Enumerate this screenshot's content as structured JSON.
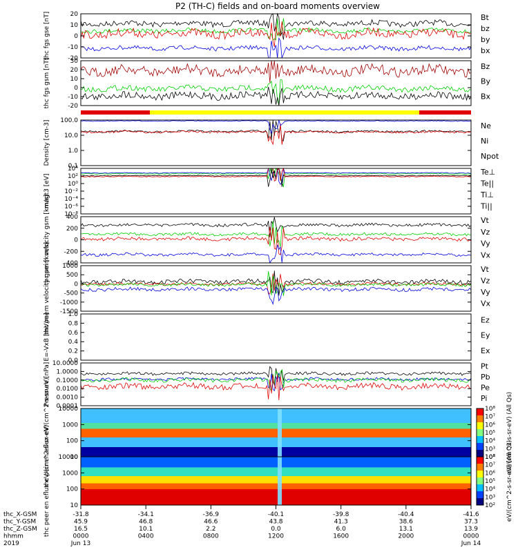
{
  "title": "P2 (TH-C) fields and on-board moments overview",
  "colors": {
    "black": "#000000",
    "red": "#e00000",
    "green": "#00d000",
    "blue": "#0000e0",
    "darkred": "#a00000",
    "yellow": "#ffff00"
  },
  "chart_data": [
    {
      "type": "line",
      "ylabel": "thc fgs gse [nT]",
      "ylim": [
        -20,
        20
      ],
      "yticks": [
        "20",
        "10",
        "0",
        "-10",
        "-20"
      ],
      "legend": [
        {
          "name": "Bt",
          "color": "black"
        },
        {
          "name": "bz",
          "color": "red"
        },
        {
          "name": "by",
          "color": "green"
        },
        {
          "name": "bx",
          "color": "blue"
        }
      ]
    },
    {
      "type": "line",
      "ylabel": "thc fgs gsm [nT]",
      "ylim": [
        -25,
        30
      ],
      "yticks": [
        "30",
        "20",
        "10",
        "0",
        "-10",
        "-20"
      ],
      "legend": [
        {
          "name": "Bz",
          "color": "darkred"
        },
        {
          "name": "By",
          "color": "green"
        },
        {
          "name": "Bx",
          "color": "black"
        }
      ]
    },
    {
      "type": "line",
      "ylabel": "Density [cm-3]",
      "scale": "log",
      "yticks": [
        "100.0",
        "10.0",
        "1.0",
        "0.1"
      ],
      "legend": [
        {
          "name": "Ne",
          "color": "red"
        },
        {
          "name": "Ni",
          "color": "black"
        },
        {
          "name": "Npot",
          "color": "blue"
        }
      ]
    },
    {
      "type": "line",
      "ylabel": "magt3 [eV]",
      "scale": "log",
      "yticks": [
        "10⁴",
        "10²",
        "10⁰",
        "10⁻²",
        "10⁻⁴",
        "10⁻⁶",
        "10⁻⁸"
      ],
      "legend": [
        {
          "name": "Te⊥",
          "color": "red"
        },
        {
          "name": "Te||",
          "color": "black"
        },
        {
          "name": "Ti⊥",
          "color": "blue"
        },
        {
          "name": "Ti||",
          "color": "green"
        }
      ]
    },
    {
      "type": "line",
      "ylabel": "thc peim velocity gsm [km/s]",
      "ylim": [
        -400,
        400
      ],
      "yticks": [
        "400",
        "200",
        "0",
        "-200",
        "-400"
      ],
      "legend": [
        {
          "name": "Vt",
          "color": "black"
        },
        {
          "name": "Vz",
          "color": "red"
        },
        {
          "name": "Vy",
          "color": "green"
        },
        {
          "name": "Vx",
          "color": "blue"
        }
      ]
    },
    {
      "type": "line",
      "ylabel": "thc peem velocity gsm [km/s]",
      "ylim": [
        -1500,
        1000
      ],
      "yticks": [
        "1000",
        "500",
        "0",
        "-500",
        "-1000",
        "-1500"
      ],
      "legend": [
        {
          "name": "Vt",
          "color": "black"
        },
        {
          "name": "Vz",
          "color": "red"
        },
        {
          "name": "Vy",
          "color": "green"
        },
        {
          "name": "Vx",
          "color": "blue"
        }
      ]
    },
    {
      "type": "line",
      "ylabel": "E=-VxB [mV/m]",
      "ylim": [
        0,
        1
      ],
      "yticks": [
        "1.0",
        "0.8",
        "0.6",
        "0.4",
        "0.2",
        "0.0"
      ],
      "legend": [
        {
          "name": "Ez",
          "color": "red"
        },
        {
          "name": "Ey",
          "color": "green"
        },
        {
          "name": "Ex",
          "color": "blue"
        }
      ]
    },
    {
      "type": "line",
      "ylabel": "Pressure [nPa]",
      "scale": "log",
      "yticks": [
        "10.0000",
        "1.0000",
        "0.1000",
        "0.0100",
        "0.0010",
        "0.0001"
      ],
      "legend": [
        {
          "name": "Pt",
          "color": "black"
        },
        {
          "name": "Pb",
          "color": "red"
        },
        {
          "name": "Pe",
          "color": "green"
        },
        {
          "name": "Pi",
          "color": "blue"
        }
      ]
    },
    {
      "type": "heatmap",
      "ylabel": "thc peir en eflux eV/(cm^2-s-sr-eV)",
      "yticks": [
        "10000",
        "1000",
        "100",
        "10"
      ],
      "colorbar": [
        "10⁸",
        "10⁷",
        "10⁶",
        "10⁵",
        "10⁴",
        "10³",
        "10²"
      ],
      "colorbar_label": "eV/(cm^2-s-sr-eV) (All Qs)"
    },
    {
      "type": "heatmap",
      "ylabel": "thc peer en eflux eV/(cm^2-s-sr-eV)",
      "yticks": [
        "10000",
        "1000",
        "100",
        "10"
      ],
      "colorbar": [
        "10⁸",
        "10⁷",
        "10⁶",
        "10⁵",
        "10⁴",
        "10³",
        "10²"
      ],
      "colorbar_label": "eV/(cm^2-s-sr-eV) (All Qs)"
    }
  ],
  "x_axis": {
    "row_labels": [
      "thc_X-GSM",
      "thc_Y-GSM",
      "thc_Z-GSM",
      "hhmm",
      "2019"
    ],
    "columns": [
      [
        "-31.8",
        "45.9",
        "16.5",
        "0000",
        "Jun 13"
      ],
      [
        "-34.1",
        "46.8",
        "10.1",
        "0400",
        ""
      ],
      [
        "-36.9",
        "46.6",
        "2.2",
        "0800",
        ""
      ],
      [
        "-40.1",
        "43.8",
        "0.0",
        "1200",
        ""
      ],
      [
        "-39.8",
        "41.3",
        "6.0",
        "1600",
        ""
      ],
      [
        "-40.4",
        "38.6",
        "13.1",
        "2000",
        ""
      ],
      [
        "-41.6",
        "37.3",
        "13.9",
        "0000",
        "Jun 14"
      ]
    ]
  }
}
